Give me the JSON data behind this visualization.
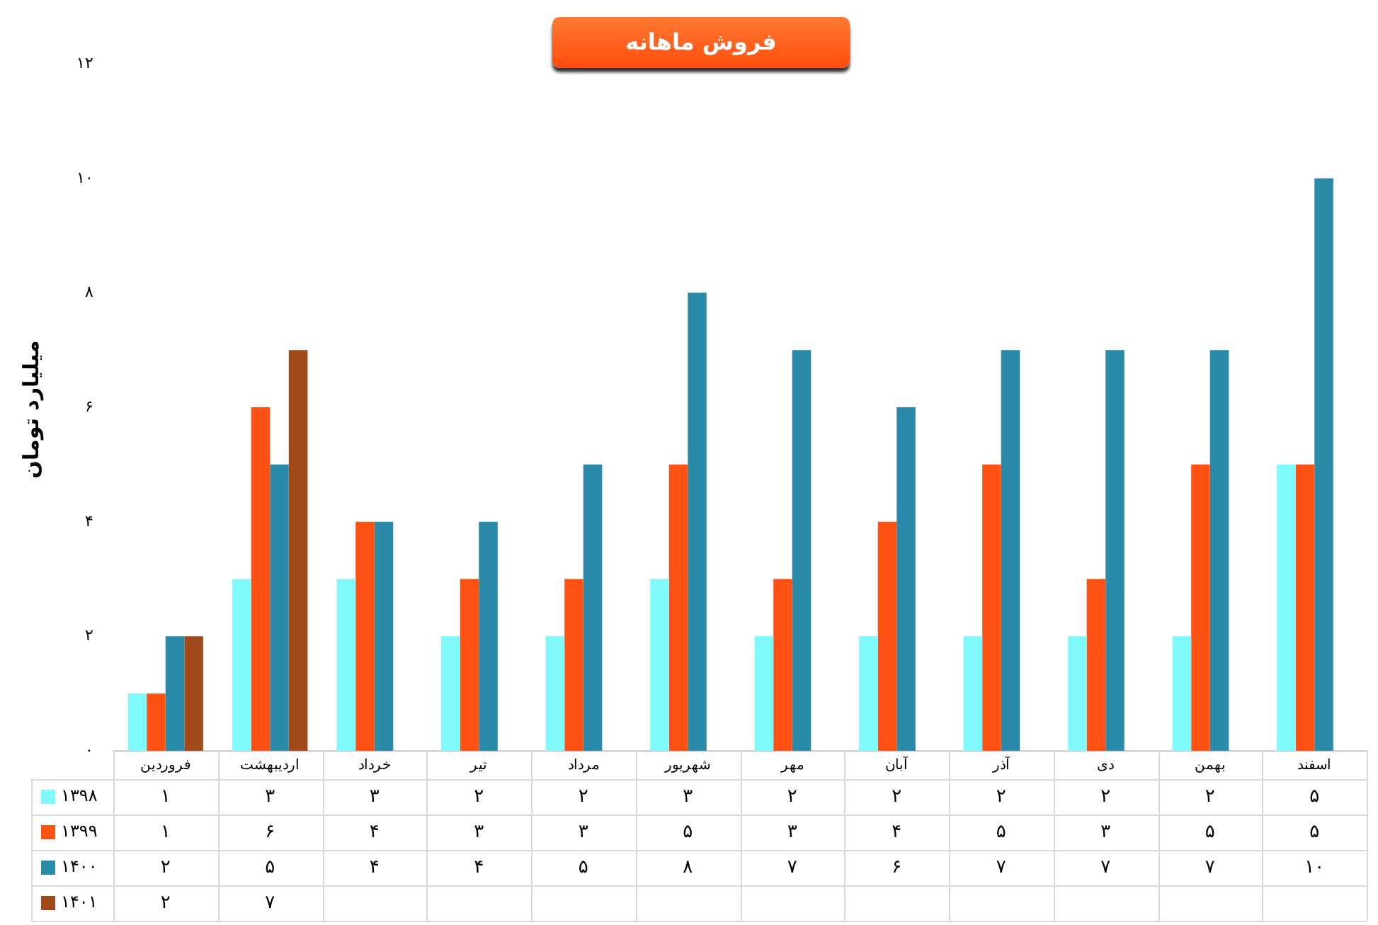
{
  "chart_data": {
    "type": "bar",
    "title": "فروش ماهانه",
    "ylabel": "میلیارد تومان",
    "categories": [
      "فروردین",
      "اردیبهشت",
      "خرداد",
      "تیر",
      "مرداد",
      "شهریور",
      "مهر",
      "آبان",
      "آذر",
      "دی",
      "بهمن",
      "اسفند"
    ],
    "series": [
      {
        "name": "۱۳۹۸",
        "color": "#7ff9fb",
        "values": [
          1,
          3,
          3,
          2,
          2,
          3,
          2,
          2,
          2,
          2,
          2,
          5
        ],
        "value_labels": [
          "۱",
          "۳",
          "۳",
          "۲",
          "۲",
          "۳",
          "۲",
          "۲",
          "۲",
          "۲",
          "۲",
          "۵"
        ]
      },
      {
        "name": "۱۳۹۹",
        "color": "#ff5113",
        "values": [
          1,
          6,
          4,
          3,
          3,
          5,
          3,
          4,
          5,
          3,
          5,
          5
        ],
        "value_labels": [
          "۱",
          "۶",
          "۴",
          "۳",
          "۳",
          "۵",
          "۳",
          "۴",
          "۵",
          "۳",
          "۵",
          "۵"
        ]
      },
      {
        "name": "۱۴۰۰",
        "color": "#2b8aa8",
        "values": [
          2,
          5,
          4,
          4,
          5,
          8,
          7,
          6,
          7,
          7,
          7,
          10
        ],
        "value_labels": [
          "۲",
          "۵",
          "۴",
          "۴",
          "۵",
          "۸",
          "۷",
          "۶",
          "۷",
          "۷",
          "۷",
          "۱۰"
        ]
      },
      {
        "name": "۱۴۰۱",
        "color": "#a0491a",
        "values": [
          2,
          7,
          null,
          null,
          null,
          null,
          null,
          null,
          null,
          null,
          null,
          null
        ],
        "value_labels": [
          "۲",
          "۷",
          null,
          null,
          null,
          null,
          null,
          null,
          null,
          null,
          null,
          null
        ]
      }
    ],
    "ylim": [
      0,
      12
    ],
    "yticks": [
      {
        "value": 0,
        "label": "۰"
      },
      {
        "value": 2,
        "label": "۲"
      },
      {
        "value": 4,
        "label": "۴"
      },
      {
        "value": 6,
        "label": "۶"
      },
      {
        "value": 8,
        "label": "۸"
      },
      {
        "value": 10,
        "label": "۱۰"
      },
      {
        "value": 12,
        "label": "۱۲"
      }
    ],
    "grid": false,
    "legend": "bottom"
  }
}
